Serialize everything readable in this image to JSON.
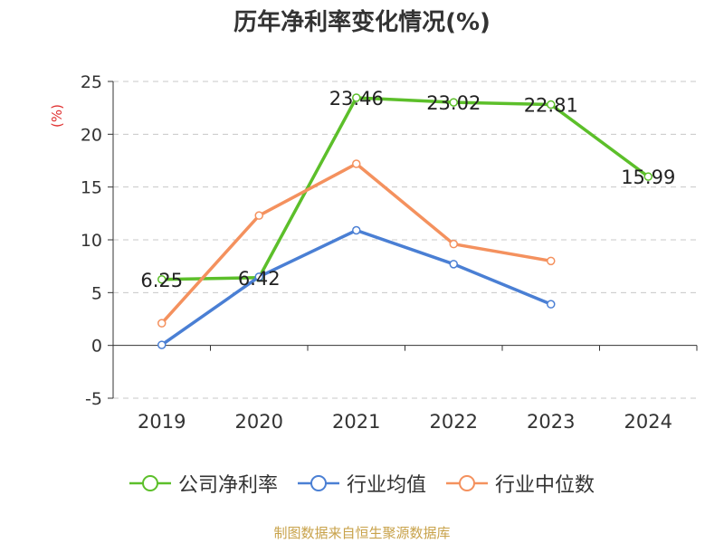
{
  "chart_data": {
    "type": "line",
    "title": "历年净利率变化情况(%)",
    "ylabel": "(%)",
    "xlabel": "",
    "categories": [
      "2019",
      "2020",
      "2021",
      "2022",
      "2023",
      "2024"
    ],
    "ylim": [
      -5,
      25
    ],
    "yticks": [
      -5,
      0,
      5,
      10,
      15,
      20,
      25
    ],
    "grid": true,
    "legend_position": "bottom",
    "series": [
      {
        "name": "公司净利率",
        "color": "#5cbf2a",
        "values": [
          6.25,
          6.42,
          23.46,
          23.02,
          22.81,
          15.99
        ],
        "data_labels": [
          "6.25",
          "6.42",
          "23.46",
          "23.02",
          "22.81",
          "15.99"
        ]
      },
      {
        "name": "行业均值",
        "color": "#4a7fd4",
        "values": [
          0.05,
          6.5,
          10.9,
          7.7,
          3.9,
          null
        ],
        "data_labels": []
      },
      {
        "name": "行业中位数",
        "color": "#f4915e",
        "values": [
          2.1,
          12.3,
          17.2,
          9.6,
          8.0,
          null
        ],
        "data_labels": []
      }
    ]
  },
  "source_text": "制图数据来自恒生聚源数据库"
}
